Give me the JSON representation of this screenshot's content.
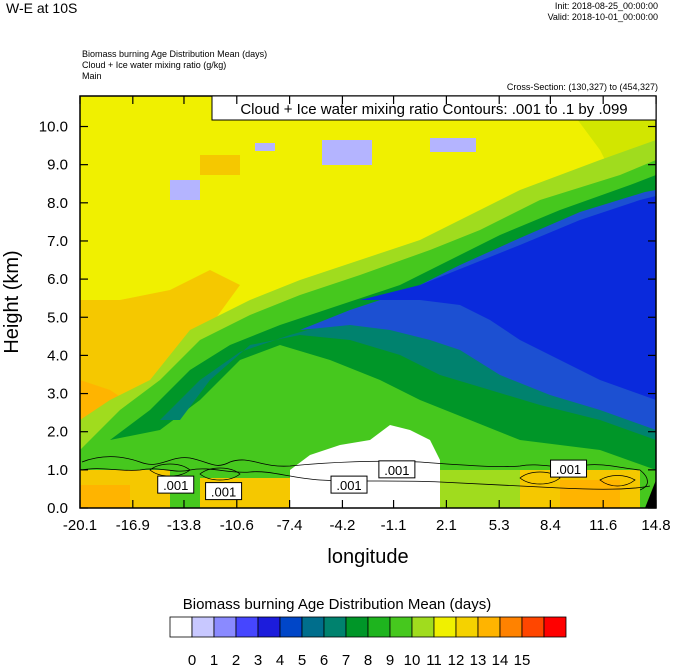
{
  "header": {
    "title": "W-E at 10S",
    "init": "Init: 2018-08-25_00:00:00",
    "valid": "Valid: 2018-10-01_00:00:00",
    "fields": [
      "Biomass burning Age Distribution Mean   (days)",
      "Cloud + Ice water mixing ratio   (g/kg)",
      "Main"
    ],
    "cross_section": "Cross-Section: (130,327) to (454,327)"
  },
  "chart_data": {
    "type": "heatmap",
    "title": "Cloud + Ice water mixing ratio Contours: .001 to .1 by .099",
    "xlabel": "longitude",
    "ylabel": "Height (km)",
    "xlim": [
      -20.1,
      14.8
    ],
    "ylim": [
      0.0,
      10.8
    ],
    "x_ticks": [
      "-20.1",
      "-16.9",
      "-13.8",
      "-10.6",
      "-7.4",
      "-4.2",
      "-1.1",
      "2.1",
      "5.3",
      "8.4",
      "11.6",
      "14.8"
    ],
    "x_tick_values": [
      -20.1,
      -16.9,
      -13.8,
      -10.6,
      -7.4,
      -4.2,
      -1.1,
      2.1,
      5.3,
      8.4,
      11.6,
      14.8
    ],
    "y_ticks": [
      "0.0",
      "1.0",
      "2.0",
      "3.0",
      "4.0",
      "5.0",
      "6.0",
      "7.0",
      "8.0",
      "9.0",
      "10.0"
    ],
    "y_tick_values": [
      0,
      1,
      2,
      3,
      4,
      5,
      6,
      7,
      8,
      9,
      10
    ],
    "contour_labels": [
      {
        "text": ".001",
        "x": -14.3,
        "y": 0.6
      },
      {
        "text": ".001",
        "x": -11.4,
        "y": 0.43
      },
      {
        "text": ".001",
        "x": -3.8,
        "y": 0.6
      },
      {
        "text": ".001",
        "x": -0.9,
        "y": 1.0
      },
      {
        "text": ".001",
        "x": 9.5,
        "y": 1.02
      }
    ],
    "colorbar": {
      "title": "Biomass burning Age Distribution Mean  (days)",
      "labels": [
        "0",
        "1",
        "2",
        "3",
        "4",
        "5",
        "6",
        "7",
        "8",
        "9",
        "10",
        "11",
        "12",
        "13",
        "14",
        "15"
      ],
      "colors": [
        "#ffffff",
        "#c8c8ff",
        "#8a8aff",
        "#4646ff",
        "#1c1cdc",
        "#0046c8",
        "#006e8c",
        "#00826e",
        "#009628",
        "#1eb41e",
        "#46c81e",
        "#a0dc1e",
        "#f0f000",
        "#f5d200",
        "#ffb400",
        "#ff8200",
        "#ff4600",
        "#ff0000"
      ]
    }
  }
}
